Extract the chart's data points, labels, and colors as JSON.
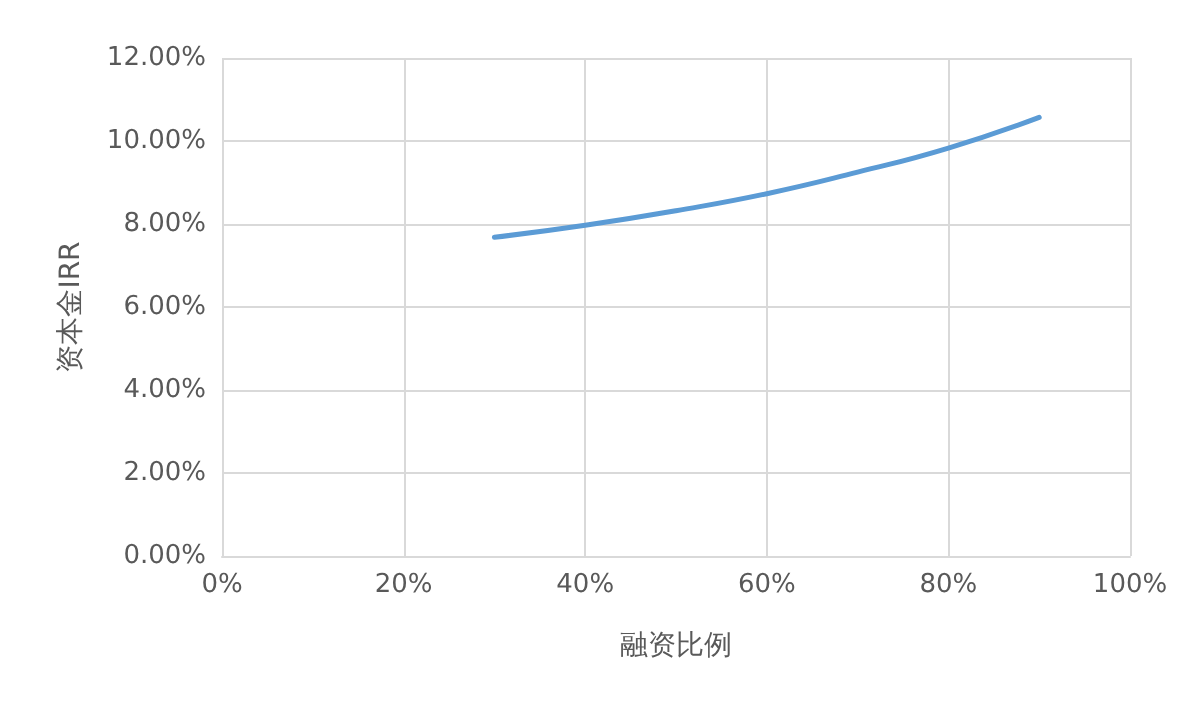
{
  "chart_data": {
    "type": "line",
    "xlabel": "融资比例",
    "ylabel": "资本金IRR",
    "x": [
      30,
      40,
      50,
      60,
      70,
      80,
      90
    ],
    "series": [
      {
        "color": "#5b9bd5",
        "values": [
          7.68,
          7.97,
          8.32,
          8.73,
          9.25,
          9.83,
          10.57
        ]
      }
    ],
    "xlim": [
      0,
      100
    ],
    "xticks": [
      {
        "value": 0,
        "label": "0%"
      },
      {
        "value": 20,
        "label": "20%"
      },
      {
        "value": 40,
        "label": "40%"
      },
      {
        "value": 60,
        "label": "60%"
      },
      {
        "value": 80,
        "label": "80%"
      },
      {
        "value": 100,
        "label": "100%"
      }
    ],
    "ylim": [
      0,
      12
    ],
    "yticks": [
      {
        "value": 0,
        "label": "0.00%"
      },
      {
        "value": 2,
        "label": "2.00%"
      },
      {
        "value": 4,
        "label": "4.00%"
      },
      {
        "value": 6,
        "label": "6.00%"
      },
      {
        "value": 8,
        "label": "8.00%"
      },
      {
        "value": 10,
        "label": "10.00%"
      },
      {
        "value": 12,
        "label": "12.00%"
      }
    ],
    "grid": true,
    "marker": "none",
    "line_style": "solid"
  }
}
